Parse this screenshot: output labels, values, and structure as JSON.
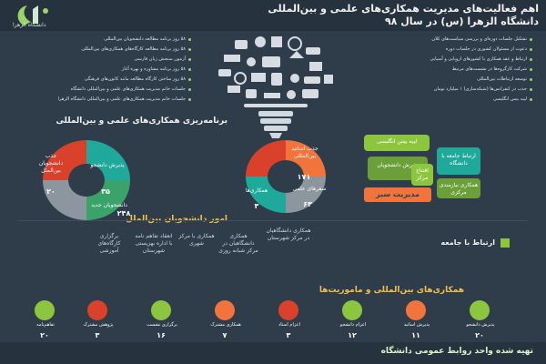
{
  "header": {
    "title_line1": "اهم فعالیت‌های مدیریت همکاری‌های علمی و بین‌المللی",
    "title_line2": "دانشگاه الزهرا (س) در سال ۹۸",
    "logo_text": "دانشگاه الزهرا"
  },
  "left_bullets": [
    "۵۸ روز برنامه مطالعه دانشجویان بین‌المللی",
    "۵۸ روز برنامه مطالعه کارگاه‌های همکاری‌های بین‌المللی",
    "آزمون سنجش زبان فارسی",
    "۵۸ روز برنامه مشاوره و بهره آغاز",
    "۵۸ روز ساختن کارگاه مطالعه مانند کانون‌های فرهنگی",
    "جلسات خانم مدیریت همکاری‌های علمی و بین‌المللی دانشگاه",
    "جلسات خانم مدیریت همکاری‌های علمی و بین‌المللی دانشگاه الزهرا"
  ],
  "right_bullets": [
    "تشکیل جلسات دوره‌ای و بررسی سیاست‌های کلان",
    "دعوت از مسئولان کشوری در جلسات دوره",
    "ارتباط و عقد همکاری با کشورهای اروپایی و آسیایی",
    "شرکت کارگروه‌ها در نشست‌های مرتبط",
    "توسعه ارتباطات بین‌المللی",
    "جذب در کنفرانس‌ها (شبکه‌سازی) ۱ میلیارد تومان",
    "لیبه بیس انگلیسی"
  ],
  "labels": {
    "program_title": "برنامه‌ریزی همکاری‌های علمی و بین‌المللی",
    "students_title": "امور دانشجویان بین‌الملل",
    "society_link": "ارتباط با جامعه",
    "missions_title": "همکاری‌های بین‌المللی و ماموریت‌ها",
    "green_mgmt": "مدیریت سبز",
    "footer": "تهیه شده واحد روابط عمومی دانشگاه"
  },
  "donut_left": [
    {
      "label": "جذب دانشجویان بین‌الملل",
      "value": "۲۰"
    },
    {
      "label": "پذیرش دانشجو",
      "value": "۳۵"
    },
    {
      "label": "دانشجویان جدید",
      "value": "۲۴۸"
    }
  ],
  "donut_right": [
    {
      "label": "جذب اساتید بین‌المللی",
      "value": "۱۷۱"
    },
    {
      "label": "سفرهای علمی",
      "value": "۶۳"
    },
    {
      "label": "همکاری‌ها",
      "value": "۳"
    }
  ],
  "green_cards": [
    "لیبه بیس انگلیسی",
    "ارتباط جامعه با دانشگاه",
    "پذیرش دانشجویان",
    "همکاری نیازمندی مرکزی",
    "افتتاح مرکز"
  ],
  "society_items": [
    {
      "text": "همکاری دانشگاهیان در مرکز شهرستان"
    },
    {
      "text": "همکاری دانشگاهیان در مرکز شبانه روزی"
    },
    {
      "text": "همکاری با مرکز شهری"
    },
    {
      "text": "انعقاد تفاهم نامه با اداره بهزیستی شهرستان"
    },
    {
      "text": "برگزاری کارگاه‌های آموزشی"
    }
  ],
  "missions": [
    {
      "text": "پذیرش دانشجو",
      "value": "۲۰"
    },
    {
      "text": "پذیرش اساتید",
      "value": "۱۱"
    },
    {
      "text": "اعزام دانشجو",
      "value": "۱۲"
    },
    {
      "text": "اعزام استاد",
      "value": "۳"
    },
    {
      "text": "همکاری مشترک",
      "value": "۷"
    },
    {
      "text": "برگزاری نشست",
      "value": "۱۶"
    },
    {
      "text": "پژوهش مشترک",
      "value": "۳"
    },
    {
      "text": "تفاهم‌نامه",
      "value": "۲۰"
    }
  ],
  "colors": {
    "bg": "#2f3d4b",
    "green": "#8cc63f",
    "teal": "#1fa99a",
    "orange": "#f0743c",
    "red": "#d9412b",
    "grey": "#8c969e"
  }
}
